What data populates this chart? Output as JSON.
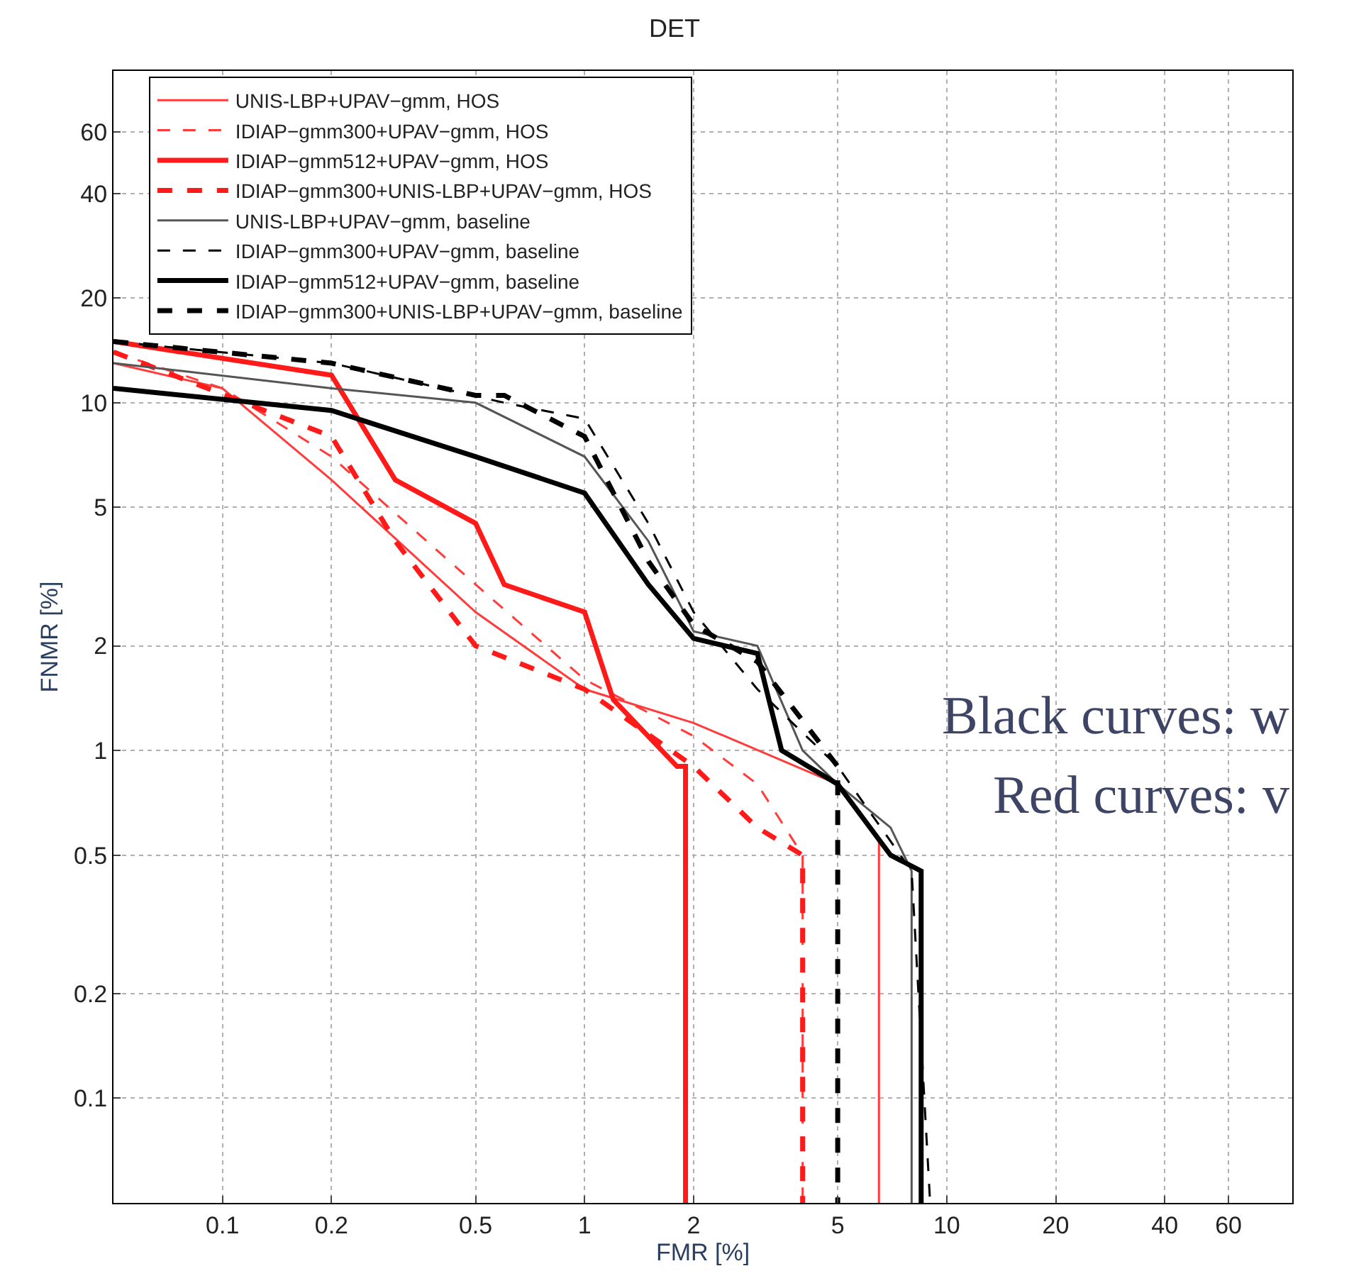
{
  "chart_data": {
    "type": "line",
    "title": "DET",
    "xlabel": "FMR [%]",
    "ylabel": "FNMR [%]",
    "log": "xy",
    "grid": true,
    "legend": "top",
    "xlim": [
      0.05,
      90
    ],
    "ylim": [
      0.05,
      90
    ],
    "xticks": [
      0.1,
      0.2,
      0.5,
      1,
      2,
      5,
      10,
      20,
      40,
      60
    ],
    "yticks": [
      0.1,
      0.2,
      0.5,
      1,
      2,
      5,
      10,
      20,
      40,
      60
    ],
    "annotations": [
      "Black curves: w",
      "Red curves: v"
    ],
    "series": [
      {
        "name": "UNIS-LBP+UPAV−gmm, HOS",
        "color": "#ff3b3b",
        "line_style": "solid",
        "x": [
          0.05,
          0.1,
          0.2,
          0.5,
          1,
          2,
          5,
          6.5,
          6.5
        ],
        "values": [
          13,
          11,
          6,
          2.5,
          1.5,
          1.2,
          0.8,
          0.55,
          0.05
        ]
      },
      {
        "name": "IDIAP−gmm300+UPAV−gmm, HOS",
        "color": "#ff3b3b",
        "line_style": "dashed",
        "x": [
          0.05,
          0.1,
          0.2,
          0.5,
          1,
          2,
          3,
          4,
          4
        ],
        "values": [
          14,
          11,
          7,
          3,
          1.6,
          1.1,
          0.8,
          0.5,
          0.05
        ]
      },
      {
        "name": "IDIAP−gmm512+UPAV−gmm, HOS",
        "color": "#ff1a1a",
        "line_style": "solid",
        "x": [
          0.05,
          0.2,
          0.3,
          0.5,
          0.6,
          1,
          1.2,
          1.8,
          1.9,
          1.9
        ],
        "values": [
          15,
          12,
          6,
          4.5,
          3,
          2.5,
          1.4,
          0.9,
          0.9,
          0.05
        ]
      },
      {
        "name": "IDIAP−gmm300+UNIS-LBP+UPAV−gmm, HOS",
        "color": "#ff1a1a",
        "line_style": "dashed",
        "x": [
          0.05,
          0.2,
          0.3,
          0.5,
          1,
          2,
          3,
          4,
          4
        ],
        "values": [
          14,
          8,
          4,
          2,
          1.5,
          0.9,
          0.6,
          0.5,
          0.05
        ]
      },
      {
        "name": "UNIS-LBP+UPAV−gmm, baseline",
        "color": "#555555",
        "line_style": "solid",
        "x": [
          0.05,
          0.2,
          0.5,
          1,
          1.5,
          2,
          3,
          4,
          5,
          7,
          8,
          8
        ],
        "values": [
          13,
          11,
          10,
          7,
          4,
          2.2,
          2,
          1,
          0.8,
          0.6,
          0.45,
          0.05
        ]
      },
      {
        "name": "IDIAP−gmm300+UPAV−gmm, baseline",
        "color": "#000000",
        "line_style": "dashed",
        "x": [
          0.05,
          0.2,
          0.6,
          1,
          1.5,
          2,
          3,
          5,
          8,
          9
        ],
        "values": [
          15,
          13,
          10,
          9,
          4.5,
          2.5,
          1.5,
          0.9,
          0.45,
          0.05
        ]
      },
      {
        "name": "IDIAP−gmm512+UPAV−gmm, baseline",
        "color": "#000000",
        "line_style": "solid",
        "x": [
          0.05,
          0.2,
          0.5,
          1,
          1.5,
          2,
          3,
          3.5,
          5,
          7,
          8.5,
          8.5
        ],
        "values": [
          11,
          9.5,
          7,
          5.5,
          3,
          2.1,
          1.9,
          1,
          0.8,
          0.5,
          0.45,
          0.05
        ]
      },
      {
        "name": "IDIAP−gmm300+UNIS-LBP+UPAV−gmm, baseline",
        "color": "#000000",
        "line_style": "dashed",
        "x": [
          0.05,
          0.2,
          0.5,
          0.6,
          1,
          1.5,
          2,
          3,
          5,
          5
        ],
        "values": [
          15,
          13,
          10.5,
          10.5,
          8,
          3.5,
          2.3,
          1.8,
          0.9,
          0.05
        ]
      }
    ]
  }
}
